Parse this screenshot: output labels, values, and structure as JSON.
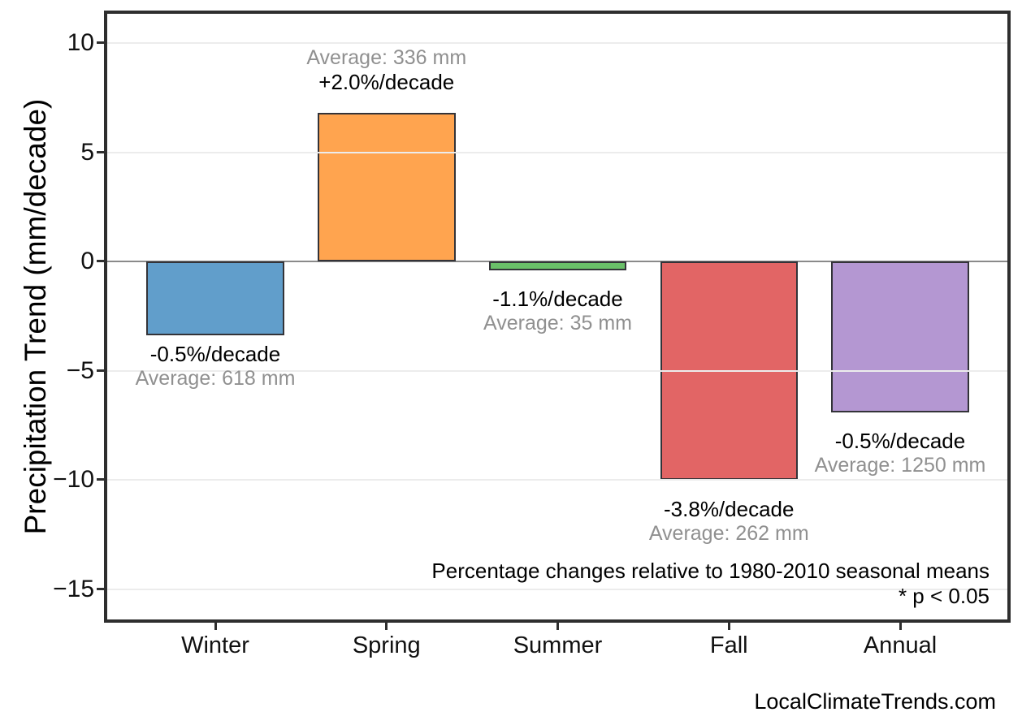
{
  "watermark": "LocalClimateTrends.com",
  "chart_data": {
    "type": "bar",
    "title": "",
    "xlabel": "",
    "ylabel": "Precipitation Trend (mm/decade)",
    "categories": [
      "Winter",
      "Spring",
      "Summer",
      "Fall",
      "Annual"
    ],
    "values": [
      -3.4,
      6.8,
      -0.4,
      -10.0,
      -6.9
    ],
    "units": "mm/decade",
    "percent_per_decade": [
      -0.5,
      2.0,
      -1.1,
      -3.8,
      -0.5
    ],
    "averages_mm": [
      618,
      336,
      35,
      262,
      1250
    ],
    "bar_colors": [
      "#619ecb",
      "#ffa44f",
      "#6abf69",
      "#e26565",
      "#b497d2"
    ],
    "bar_edge_color": "#333338",
    "y_ticks": [
      10,
      5,
      0,
      -5,
      -10,
      -15
    ],
    "y_tick_labels": [
      "10",
      "5",
      "0",
      "−5",
      "−10",
      "−15"
    ],
    "ylim": [
      -16.5,
      11.5
    ],
    "grid": "horizontal-light",
    "legend": "none",
    "labels": [
      {
        "percent": "-0.5%/decade",
        "average": "Average: 618 mm"
      },
      {
        "percent": "+2.0%/decade",
        "average": "Average: 336 mm"
      },
      {
        "percent": "-1.1%/decade",
        "average": "Average: 35 mm"
      },
      {
        "percent": "-3.8%/decade",
        "average": "Average: 262 mm"
      },
      {
        "percent": "-0.5%/decade",
        "average": "Average: 1250 mm"
      }
    ],
    "notes": [
      "Percentage changes relative to 1980-2010 seasonal means",
      "* p < 0.05"
    ]
  }
}
